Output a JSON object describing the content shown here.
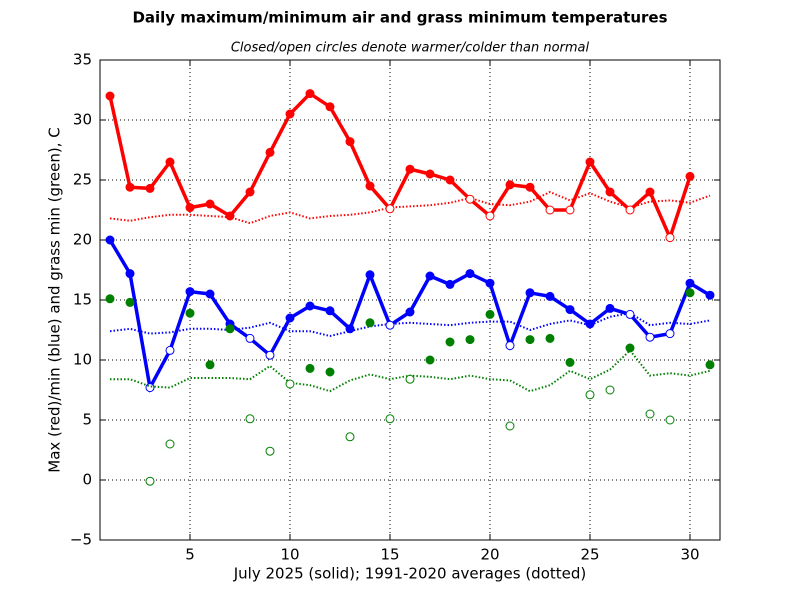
{
  "chart_data": {
    "type": "line",
    "title": "Daily maximum/minimum air and grass minimum temperatures",
    "subtitle": "Closed/open circles denote warmer/colder than normal",
    "x_label": "July 2025 (solid);  1991-2020 averages (dotted)",
    "y_label": "Max (red)/min (blue) and grass min (green), C",
    "x": [
      1,
      2,
      3,
      4,
      5,
      6,
      7,
      8,
      9,
      10,
      11,
      12,
      13,
      14,
      15,
      16,
      17,
      18,
      19,
      20,
      21,
      22,
      23,
      24,
      25,
      26,
      27,
      28,
      29,
      30,
      31
    ],
    "series": [
      {
        "color": "#ff0000",
        "line": true,
        "values": [
          32.0,
          24.4,
          24.3,
          26.5,
          22.7,
          23.0,
          22.0,
          24.0,
          27.3,
          30.5,
          32.2,
          31.1,
          28.2,
          24.5,
          22.6,
          25.9,
          25.5,
          25.0,
          23.4,
          22.0,
          24.6,
          24.4,
          22.5,
          22.5,
          26.5,
          24.0,
          22.5,
          24.0,
          20.2,
          25.3,
          null
        ],
        "normals": [
          21.8,
          21.6,
          21.9,
          22.1,
          22.1,
          22.0,
          21.9,
          21.4,
          22.0,
          22.3,
          21.8,
          22.0,
          22.1,
          22.3,
          22.7,
          22.8,
          22.9,
          23.1,
          23.5,
          23.0,
          22.9,
          23.2,
          24.0,
          23.3,
          23.9,
          23.2,
          22.7,
          23.2,
          23.3,
          23.1,
          23.7
        ]
      },
      {
        "color": "#0000ff",
        "line": true,
        "values": [
          20.0,
          17.2,
          7.7,
          10.8,
          15.7,
          15.5,
          13.0,
          11.8,
          10.4,
          13.5,
          14.5,
          14.1,
          12.6,
          17.1,
          12.9,
          14.0,
          17.0,
          16.3,
          17.2,
          16.4,
          11.2,
          15.6,
          15.3,
          14.2,
          13.0,
          14.3,
          13.8,
          11.9,
          12.2,
          16.4,
          15.4
        ],
        "normals": [
          12.4,
          12.6,
          12.2,
          12.3,
          12.6,
          12.6,
          12.5,
          12.7,
          13.1,
          12.4,
          12.4,
          12.0,
          12.4,
          12.8,
          13.0,
          13.1,
          13.0,
          12.9,
          13.1,
          13.2,
          13.2,
          12.5,
          13.0,
          13.3,
          12.9,
          13.6,
          13.9,
          12.9,
          13.1,
          13.0,
          13.3
        ]
      },
      {
        "color": "#008000",
        "line": false,
        "values": [
          15.1,
          14.8,
          -0.1,
          3.0,
          13.9,
          9.6,
          12.6,
          5.1,
          2.4,
          8.0,
          9.3,
          9.0,
          3.6,
          13.1,
          5.1,
          8.4,
          10.0,
          11.5,
          11.7,
          13.8,
          4.5,
          11.7,
          11.8,
          9.8,
          7.1,
          7.5,
          11.0,
          5.5,
          5.0,
          15.6,
          9.6
        ],
        "normals": [
          8.4,
          8.4,
          7.8,
          7.7,
          8.5,
          8.5,
          8.5,
          8.4,
          9.5,
          8.1,
          7.9,
          7.4,
          8.3,
          8.8,
          8.4,
          8.7,
          8.6,
          8.4,
          8.7,
          8.4,
          8.3,
          7.4,
          7.9,
          9.1,
          8.4,
          9.2,
          10.8,
          8.7,
          8.9,
          8.7,
          9.1
        ]
      }
    ],
    "xlim": [
      0.5,
      31.5
    ],
    "xticks": [
      5,
      10,
      15,
      20,
      25,
      30
    ],
    "ylim": [
      -5,
      35
    ],
    "yticks": [
      {
        "value": -5,
        "label": "−5"
      },
      0,
      5,
      10,
      15,
      20,
      25,
      30,
      35
    ],
    "grid": true
  }
}
